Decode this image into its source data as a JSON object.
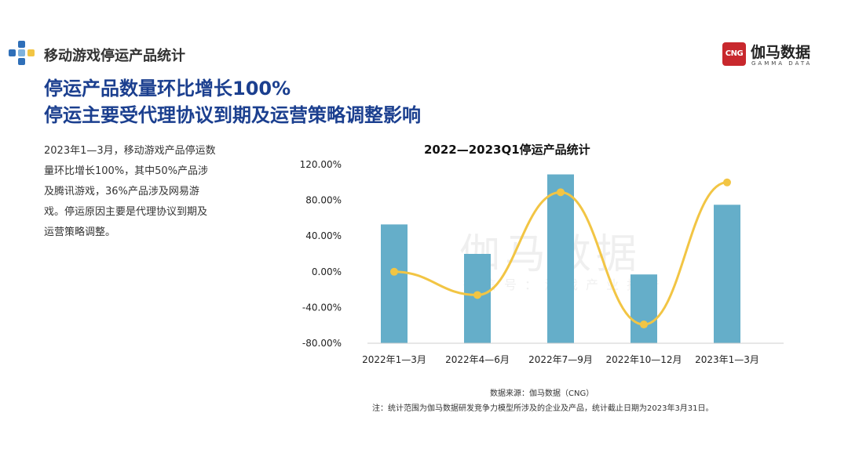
{
  "header": {
    "section_label": "移动游戏停运产品统计",
    "logo_badge": "CNG",
    "logo_cn": "伽马数据",
    "logo_en": "GAMMA DATA"
  },
  "headline": {
    "line1": "停运产品数量环比增长100%",
    "line2": "停运主要受代理协议到期及运营策略调整影响"
  },
  "description": "2023年1—3月，移动游戏产品停运数量环比增长100%，其中50%产品涉及腾讯游戏，36%产品涉及网易游戏。停运原因主要是代理协议到期及运营策略调整。",
  "watermark": {
    "main": "伽马数据",
    "sub": "微信号：游戏产业报告"
  },
  "footer": {
    "source": "数据来源：伽马数据（CNG）",
    "note": "注：统计范围为伽马数据研发竞争力模型所涉及的企业及产品，统计截止日期为2023年3月31日。"
  },
  "colors": {
    "bar": "#65aec9",
    "line": "#f2c544",
    "headline": "#1b3f8f",
    "logo": "#c8282d"
  },
  "chart_data": {
    "type": "bar",
    "title": "2022—2023Q1停运产品统计",
    "categories": [
      "2022年1—3月",
      "2022年4—6月",
      "2022年7—9月",
      "2022年10—12月",
      "2023年1—3月"
    ],
    "series": [
      {
        "type": "bar",
        "values": [
          53,
          20,
          109,
          -3,
          75
        ]
      },
      {
        "type": "line",
        "values": [
          0,
          -26,
          89,
          -59,
          100
        ]
      }
    ],
    "y_ticks": [
      "120.00%",
      "80.00%",
      "40.00%",
      "0.00%",
      "-40.00%",
      "-80.00%"
    ],
    "y_tick_values": [
      120,
      80,
      40,
      0,
      -40,
      -80
    ],
    "ylim": [
      -80,
      120
    ],
    "grid": false,
    "legend": "none"
  }
}
